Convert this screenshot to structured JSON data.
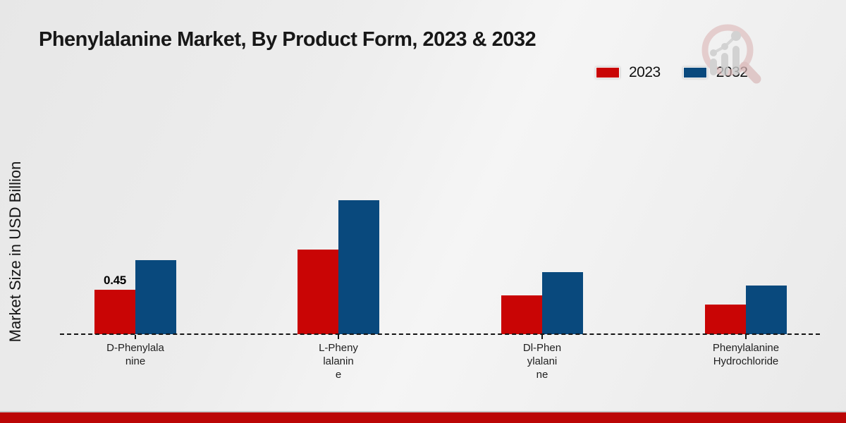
{
  "page": {
    "title": "Phenylalanine Market, By Product Form, 2023 & 2032"
  },
  "chart_data": {
    "type": "bar",
    "title": "Phenylalanine Market, By Product Form, 2023 & 2032",
    "ylabel": "Market Size in USD Billion",
    "xlabel": "",
    "categories": [
      "D-Phenylalanine",
      "L-Phenylalanine",
      "Dl-Phenylalanine",
      "Phenylalanine Hydrochloride"
    ],
    "category_label_lines": [
      [
        "D-Phenylala",
        "nine"
      ],
      [
        "L-Pheny",
        "lalanin",
        "e"
      ],
      [
        "Dl-Phen",
        "ylalani",
        "ne"
      ],
      [
        "Phenylalanine",
        "Hydrochloride"
      ]
    ],
    "series": [
      {
        "name": "2023",
        "color": "#c90505",
        "values": [
          0.45,
          0.86,
          0.39,
          0.3
        ]
      },
      {
        "name": "2032",
        "color": "#09497d",
        "values": [
          0.75,
          1.36,
          0.63,
          0.49
        ]
      }
    ],
    "data_labels": [
      {
        "series": "2023",
        "category": "D-Phenylalanine",
        "text": "0.45"
      }
    ],
    "ylim": [
      0,
      1.5
    ],
    "baseline": {
      "value": 0,
      "style": "dashed-black"
    },
    "grid": false,
    "legend_position": "top-right"
  },
  "legend": {
    "items": [
      {
        "label": "2023",
        "color": "#c90505"
      },
      {
        "label": "2032",
        "color": "#09497d"
      }
    ]
  },
  "icons": {
    "watermark": "bar-chart-magnifier-logo"
  },
  "footer": {
    "accent_color": "#bb0606"
  }
}
